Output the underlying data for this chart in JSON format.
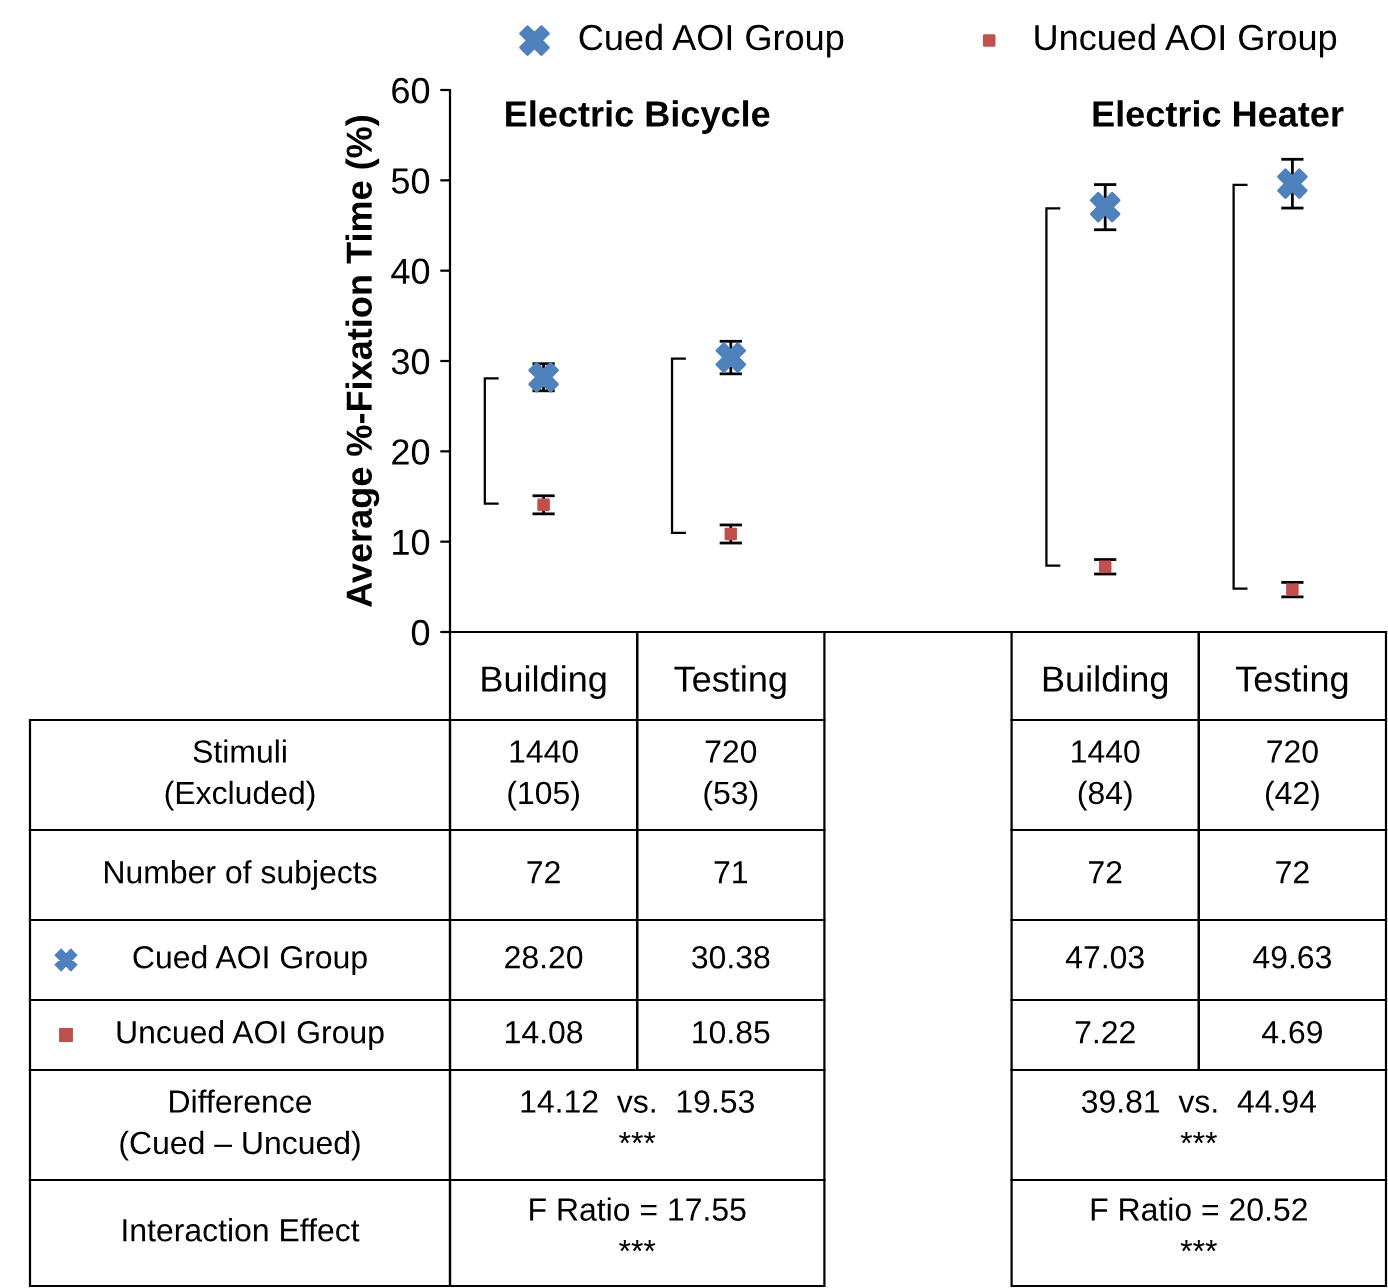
{
  "chart_data": {
    "type": "scatter",
    "ylabel": "Average %-Fixation Time (%)",
    "categories": [
      "Building",
      "Testing",
      null,
      "Building",
      "Testing"
    ],
    "series": [
      {
        "name": "Cued AOI Group",
        "color": "#4f81bd",
        "marker": "cross",
        "values": [
          28.2,
          30.38,
          null,
          47.03,
          49.63
        ],
        "errors": [
          1.5,
          1.8,
          null,
          2.5,
          2.7
        ],
        "value_labels": [
          "28.20",
          "30.38",
          null,
          "47.03",
          "49.63"
        ]
      },
      {
        "name": "Uncued AOI Group",
        "color": "#c0504d",
        "marker": "square",
        "values": [
          14.08,
          10.85,
          null,
          7.22,
          4.69
        ],
        "errors": [
          1.0,
          1.0,
          null,
          0.8,
          0.8
        ],
        "value_labels": [
          "14.08",
          "10.85",
          null,
          "7.22",
          "4.69"
        ]
      }
    ],
    "ylim": [
      0,
      60
    ],
    "yticks": [
      0,
      10,
      20,
      30,
      40,
      50,
      60
    ],
    "grid": false,
    "legend": "top",
    "annotations": [
      "Electric Bicycle",
      "Electric Heater",
      "Stimuli\n(Excluded)",
      "1440\n(105)",
      "720\n(53)",
      "1440\n(84)",
      "720\n(42)",
      "Number of subjects",
      "72",
      "71",
      "72",
      "72",
      "Difference\n(Cued – Uncued)",
      "14.12  vs.  19.53\n***",
      "39.81  vs.  44.94\n***",
      "Interaction Effect",
      "F Ratio = 17.55\n***",
      "F Ratio = 20.52\n***"
    ]
  }
}
